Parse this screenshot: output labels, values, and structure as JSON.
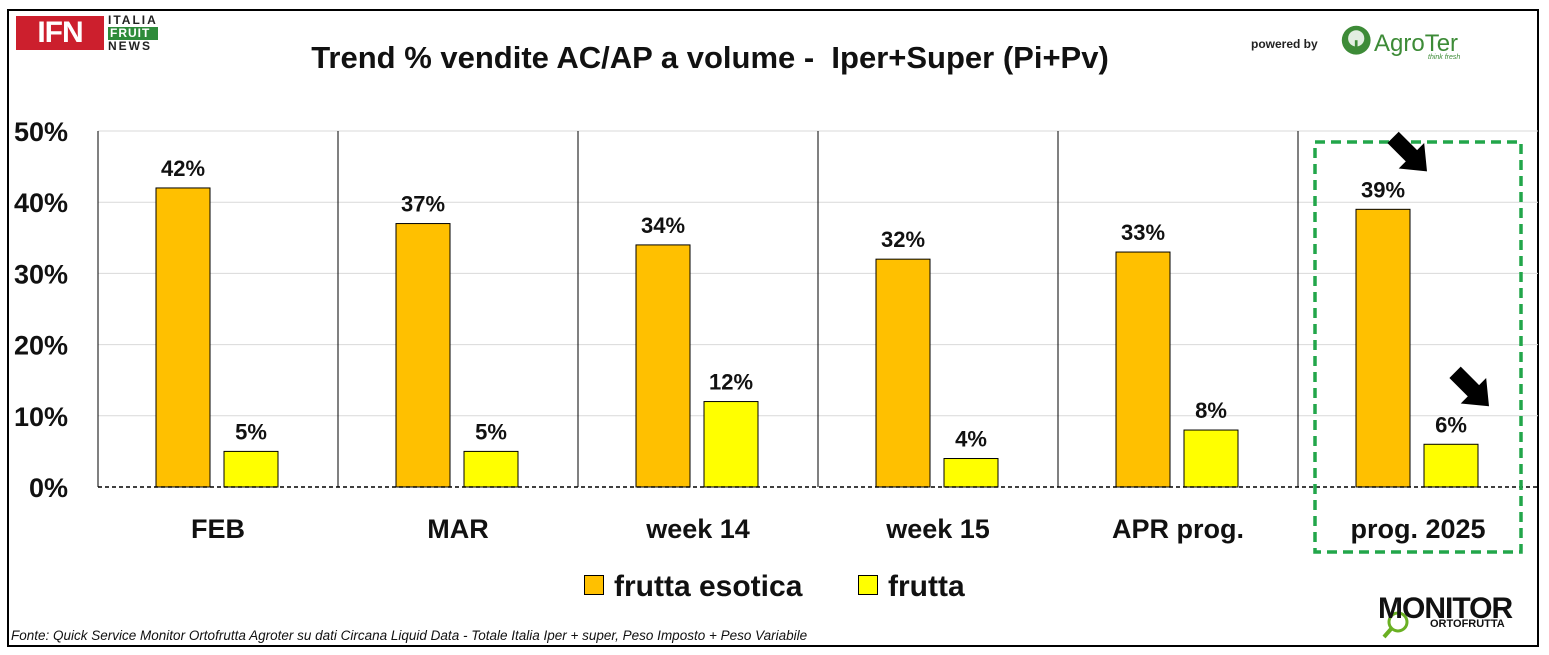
{
  "header": {
    "ifn_logo_text": "IFN",
    "ifn_sub_lines": [
      "ITALIA",
      "FRUIT",
      "NEWS"
    ],
    "powered_by": "powered by",
    "agroter_name": "AgroTer",
    "agroter_tagline": "think fresh"
  },
  "footer": {
    "source": "Fonte: Quick Service Monitor Ortofrutta Agroter su dati Circana Liquid Data - Totale Italia Iper + super, Peso Imposto + Peso Variabile",
    "monitor_word": "MONITOR",
    "ortofrutta_word": "ORTOFRUTTA"
  },
  "colors": {
    "frutta_esotica": "#ffc000",
    "frutta": "#ffff00",
    "highlight_box": "#22a64a",
    "ifn_red": "#cc1f2d",
    "agroter_green": "#3d8b37"
  },
  "chart_data": {
    "type": "bar",
    "title": "Trend % vendite AC/AP a volume -  Iper+Super (Pi+Pv)",
    "categories": [
      "FEB",
      "MAR",
      "week 14",
      "week 15",
      "APR prog.",
      "prog. 2025"
    ],
    "series": [
      {
        "name": "frutta esotica",
        "values": [
          42,
          37,
          34,
          32,
          33,
          39
        ],
        "labels": [
          "42%",
          "37%",
          "34%",
          "32%",
          "33%",
          "39%"
        ]
      },
      {
        "name": "frutta",
        "values": [
          5,
          5,
          12,
          4,
          8,
          6
        ],
        "labels": [
          "5%",
          "5%",
          "12%",
          "4%",
          "8%",
          "6%"
        ]
      }
    ],
    "ylim": [
      0,
      50
    ],
    "yticks": [
      "0%",
      "10%",
      "20%",
      "30%",
      "40%",
      "50%"
    ],
    "ytick_values": [
      0,
      10,
      20,
      30,
      40,
      50
    ],
    "grid": true,
    "legend_placement": "bottom",
    "highlighted_category": "prog. 2025"
  }
}
